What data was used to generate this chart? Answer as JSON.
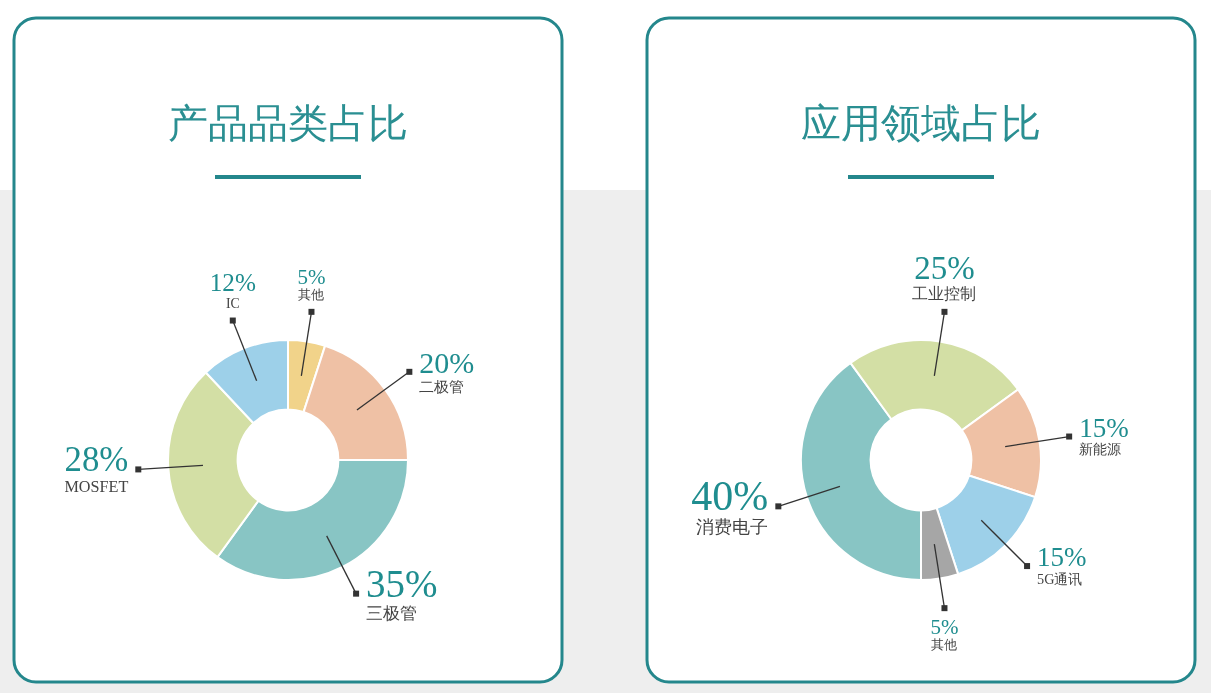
{
  "chart_data": [
    {
      "type": "donut",
      "title": "产品品类占比",
      "categories": [
        "其他",
        "二极管",
        "三极管",
        "MOSFET",
        "IC"
      ],
      "values": [
        5,
        20,
        35,
        28,
        12
      ],
      "colors": [
        "#f1d38a",
        "#efc1a5",
        "#88c5c4",
        "#d3dfa5",
        "#9dd0e9"
      ],
      "value_labels": [
        "5%",
        "20%",
        "35%",
        "28%",
        "12%"
      ]
    },
    {
      "type": "donut",
      "title": "应用领域占比",
      "categories": [
        "消费电子",
        "工业控制",
        "新能源",
        "5G通讯",
        "其他"
      ],
      "values": [
        40,
        25,
        15,
        15,
        5
      ],
      "colors": [
        "#88c5c4",
        "#d3dfa5",
        "#efc1a5",
        "#9dd0e9",
        "#a6a6a6"
      ],
      "value_labels": [
        "40%",
        "25%",
        "15%",
        "15%",
        "5%"
      ]
    }
  ]
}
